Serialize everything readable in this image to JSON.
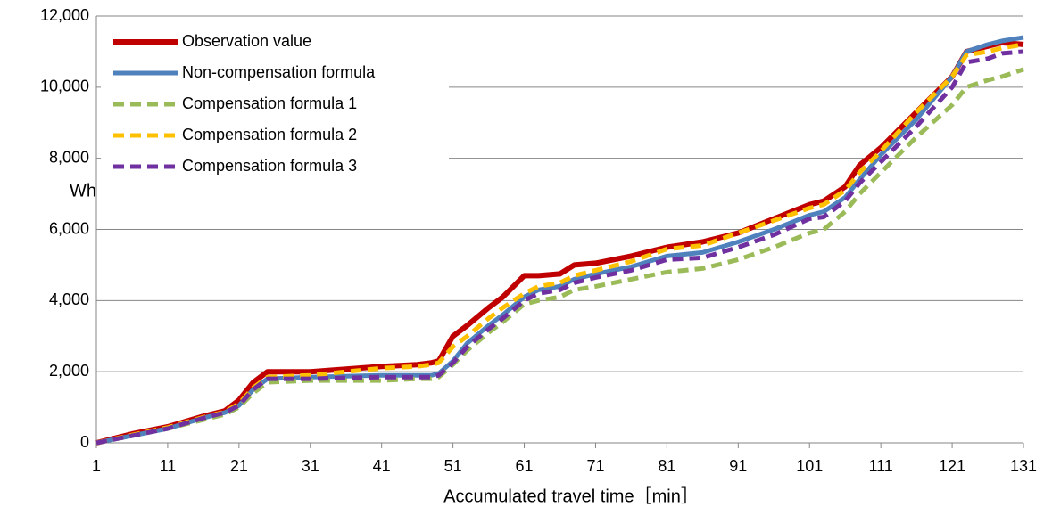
{
  "chart_data": {
    "type": "line",
    "x_label": "Accumulated travel time［min］",
    "y_label": "Wh",
    "x": [
      1,
      6,
      11,
      16,
      19,
      21,
      23,
      25,
      31,
      41,
      46,
      48,
      49,
      51,
      53,
      56,
      58,
      61,
      63,
      66,
      68,
      71,
      76,
      81,
      86,
      91,
      96,
      101,
      103,
      106,
      108,
      111,
      116,
      121,
      123,
      126,
      128,
      131
    ],
    "series": [
      {
        "name": "Observation value",
        "color": "#c00000",
        "line_style": "solid",
        "values": [
          0,
          250,
          450,
          750,
          900,
          1200,
          1700,
          2000,
          2000,
          2150,
          2200,
          2250,
          2300,
          3000,
          3300,
          3800,
          4100,
          4700,
          4700,
          4750,
          5000,
          5050,
          5250,
          5500,
          5650,
          5900,
          6300,
          6700,
          6800,
          7200,
          7800,
          8300,
          9300,
          10300,
          11000,
          11150,
          11250,
          11200
        ]
      },
      {
        "name": "Non-compensation formula",
        "color": "#4f81bd",
        "line_style": "solid",
        "values": [
          0,
          200,
          400,
          700,
          850,
          1050,
          1500,
          1800,
          1850,
          1900,
          1900,
          1900,
          1950,
          2300,
          2800,
          3300,
          3600,
          4100,
          4300,
          4400,
          4600,
          4750,
          4950,
          5250,
          5350,
          5650,
          6000,
          6400,
          6500,
          6900,
          7400,
          8100,
          9100,
          10300,
          11000,
          11200,
          11300,
          11400
        ]
      },
      {
        "name": "Compensation formula 1",
        "color": "#9bbb59",
        "line_style": "dashed",
        "values": [
          0,
          200,
          400,
          650,
          800,
          1000,
          1400,
          1700,
          1750,
          1750,
          1800,
          1800,
          1850,
          2200,
          2600,
          3100,
          3400,
          3900,
          4000,
          4100,
          4300,
          4400,
          4600,
          4800,
          4900,
          5150,
          5500,
          5900,
          6000,
          6500,
          7000,
          7600,
          8600,
          9500,
          10000,
          10200,
          10300,
          10500
        ]
      },
      {
        "name": "Compensation formula 2",
        "color": "#ffc000",
        "line_style": "dashed",
        "values": [
          0,
          220,
          430,
          720,
          870,
          1100,
          1550,
          1850,
          1900,
          2100,
          2150,
          2200,
          2250,
          2700,
          3000,
          3500,
          3800,
          4200,
          4400,
          4500,
          4700,
          4850,
          5100,
          5450,
          5550,
          5900,
          6250,
          6600,
          6700,
          7100,
          7600,
          8200,
          9300,
          10300,
          10900,
          11000,
          11100,
          11200
        ]
      },
      {
        "name": "Compensation formula 3",
        "color": "#7030a0",
        "line_style": "dashed",
        "values": [
          0,
          200,
          400,
          700,
          850,
          1050,
          1500,
          1800,
          1800,
          1850,
          1850,
          1850,
          1900,
          2250,
          2700,
          3200,
          3500,
          4000,
          4200,
          4300,
          4500,
          4650,
          4850,
          5150,
          5200,
          5500,
          5850,
          6300,
          6350,
          6800,
          7300,
          7900,
          8900,
          10000,
          10700,
          10800,
          10950,
          11000
        ]
      }
    ],
    "xlim": [
      1,
      131
    ],
    "xticks": [
      1,
      11,
      21,
      31,
      41,
      51,
      61,
      71,
      81,
      91,
      101,
      111,
      121,
      131
    ],
    "ylim": [
      0,
      12000
    ],
    "yticks": [
      0,
      {
        "value": 2000,
        "label": "2,000"
      },
      {
        "value": 4000,
        "label": "4,000"
      },
      {
        "value": 6000,
        "label": "6,000"
      },
      {
        "value": 8000,
        "label": "8,000"
      },
      {
        "value": 10000,
        "label": "10,000"
      },
      {
        "value": 12000,
        "label": "12,000"
      }
    ],
    "grid": true,
    "legend": "top-left"
  }
}
